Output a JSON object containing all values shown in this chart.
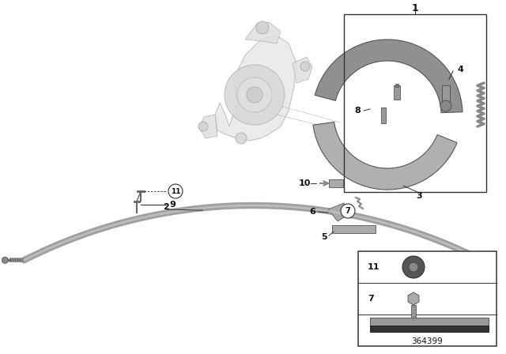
{
  "bg_color": "#ffffff",
  "part_number": "364399",
  "line_color": "#333333",
  "text_color": "#111111",
  "gray_light": "#d0d0d0",
  "gray_mid": "#aaaaaa",
  "gray_dark": "#888888",
  "gray_darker": "#666666"
}
